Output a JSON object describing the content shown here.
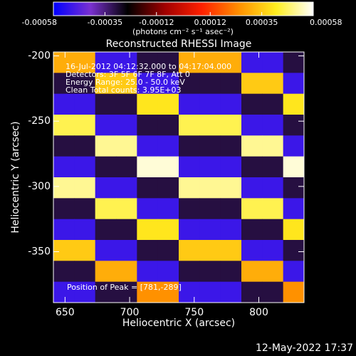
{
  "chart_data": {
    "type": "image",
    "title": "Reconstructed RHESSI Image",
    "xlabel": "Heliocentric X (arcsec)",
    "ylabel": "Heliocentric Y (arcsec)",
    "annotations": [
      "16-Jul-2012 04:12:32.000 to 04:17:04.000",
      "Detectors: 3F 5F 6F 7F 8F, Att 0",
      "Energy Range: 25.0 - 50.0 keV",
      "Clean    Total counts: 3.95E+03"
    ],
    "peak_label": "Position of Peak = [781,-289]",
    "timestamp": "12-May-2022 17:37",
    "xlim": [
      641,
      835
    ],
    "ylim": [
      -389,
      -197
    ],
    "xticks": [
      650,
      700,
      750,
      800
    ],
    "yticks": [
      -200,
      -250,
      -300,
      -350
    ],
    "colormap": [
      "#0000ff",
      "#7a30d0",
      "#000000",
      "#a00000",
      "#ff2000",
      "#ff9000",
      "#ffee20",
      "#ffffff"
    ],
    "colorbar": {
      "lim": [
        -0.00058,
        0.00058
      ],
      "ticks": [
        -0.00058,
        -0.00035,
        -0.00012,
        0.00012,
        0.00035,
        0.00058
      ],
      "label": "(photons cm⁻² s⁻¹ asec⁻²)"
    },
    "z": [
      [
        0.0003,
        0.0003,
        -0.0005,
        -0.0005,
        -0.0003,
        -0.0003,
        0.0003,
        0.0003,
        0.0003,
        -0.0005,
        -0.0005,
        -0.0003
      ],
      [
        -0.0003,
        -0.0003,
        0.00035,
        0.00035,
        -0.0005,
        -0.0005,
        -0.0003,
        -0.0003,
        -0.0003,
        0.00035,
        0.00035,
        -0.0005
      ],
      [
        -0.0005,
        -0.0005,
        -0.0003,
        -0.0003,
        0.0004,
        0.0004,
        -0.0005,
        -0.0005,
        -0.0005,
        -0.0003,
        -0.0003,
        0.0004
      ],
      [
        0.00045,
        0.00045,
        -0.0005,
        -0.0005,
        -0.0003,
        -0.0003,
        0.00045,
        0.00045,
        0.00045,
        -0.0005,
        -0.0005,
        -0.0003
      ],
      [
        -0.0003,
        -0.0003,
        0.0005,
        0.0005,
        -0.0005,
        -0.0005,
        -0.0003,
        -0.0003,
        -0.0003,
        0.0005,
        0.0005,
        -0.0005
      ],
      [
        -0.0005,
        -0.0005,
        -0.0003,
        -0.0003,
        0.00055,
        0.00055,
        -0.0005,
        -0.0005,
        -0.0005,
        -0.0003,
        -0.0003,
        0.00055
      ],
      [
        0.0005,
        0.0005,
        -0.0005,
        -0.0005,
        -0.0003,
        -0.0003,
        0.0005,
        0.0005,
        0.0005,
        -0.0005,
        -0.0005,
        -0.0003
      ],
      [
        -0.0003,
        -0.0003,
        0.00045,
        0.00045,
        -0.0005,
        -0.0005,
        -0.0003,
        -0.0003,
        -0.0003,
        0.00045,
        0.00045,
        -0.0005
      ],
      [
        -0.0005,
        -0.0005,
        -0.0003,
        -0.0003,
        0.0004,
        0.0004,
        -0.0005,
        -0.0005,
        -0.0005,
        -0.0003,
        -0.0003,
        0.0004
      ],
      [
        0.00035,
        0.00035,
        -0.0005,
        -0.0005,
        -0.0003,
        -0.0003,
        0.00035,
        0.00035,
        0.00035,
        -0.0005,
        -0.0005,
        -0.0003
      ],
      [
        -0.0003,
        -0.0003,
        0.0003,
        0.0003,
        -0.0005,
        -0.0005,
        -0.0003,
        -0.0003,
        -0.0003,
        0.0003,
        0.0003,
        -0.0005
      ],
      [
        -0.0005,
        -0.0005,
        -0.0003,
        -0.0003,
        0.00025,
        0.00025,
        -0.0005,
        -0.0005,
        -0.0005,
        -0.0003,
        -0.0003,
        0.00025
      ]
    ]
  }
}
